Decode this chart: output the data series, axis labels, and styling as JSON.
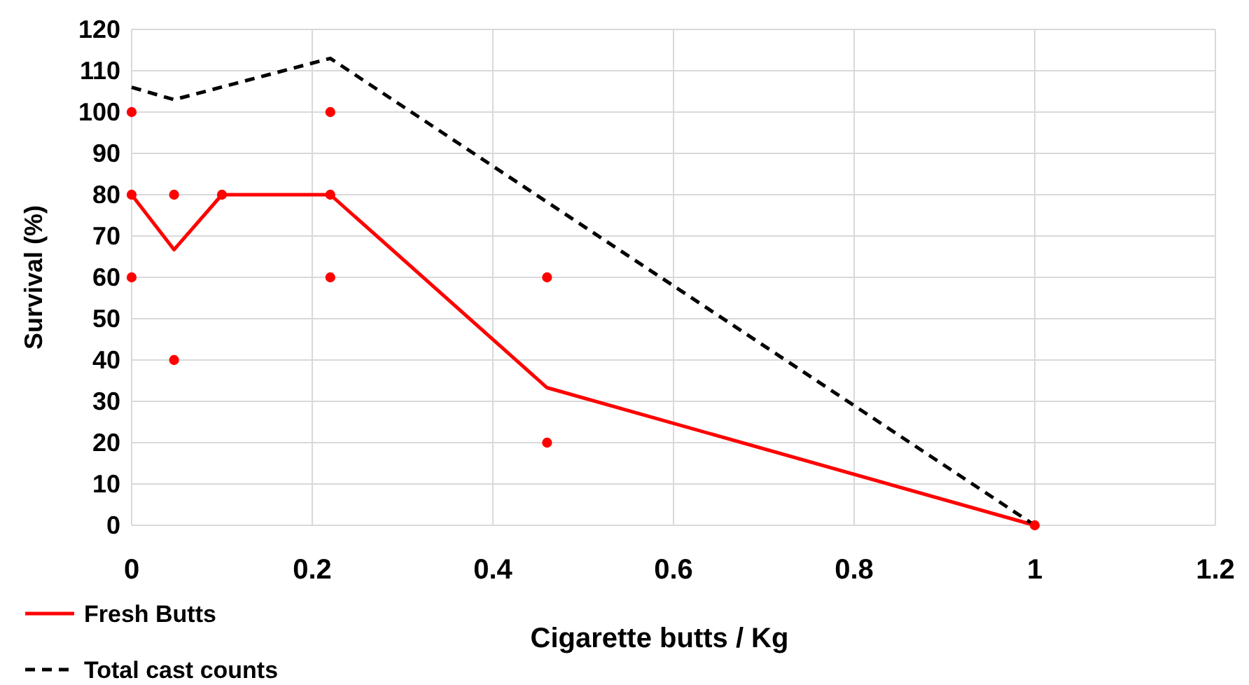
{
  "chart_data": {
    "type": "line",
    "xlabel": "Cigarette butts / Kg",
    "ylabel": "Survival (%)",
    "xlim": [
      0,
      1.2
    ],
    "xticks": [
      0,
      0.2,
      0.4,
      0.6,
      0.8,
      1,
      1.2
    ],
    "ylim": [
      0,
      120
    ],
    "yticks": [
      0,
      10,
      20,
      30,
      40,
      50,
      60,
      70,
      80,
      90,
      100,
      110,
      120
    ],
    "grid": true,
    "legend": "bottom left",
    "marker": "none",
    "series": [
      {
        "name": "Fresh Butts",
        "color": "#ff0000",
        "line_style": "solid",
        "x": [
          0,
          0.047,
          0.1,
          0.22,
          0.46,
          1
        ],
        "values": [
          80,
          66.7,
          80,
          80,
          33.3,
          0
        ]
      },
      {
        "name": "Total cast counts",
        "color": "#000000",
        "line_style": "dashed",
        "x": [
          0,
          0.047,
          0.22,
          1
        ],
        "values": [
          106,
          103,
          113,
          0
        ]
      },
      {
        "type": "scatter",
        "color": "#ff0000",
        "marker": "circle",
        "x": [
          0,
          0,
          0,
          0.047,
          0.047,
          0.1,
          0.22,
          0.22,
          0.22,
          0.46,
          0.46,
          1
        ],
        "values": [
          100,
          80,
          60,
          80,
          40,
          80,
          100,
          80,
          60,
          60,
          20,
          0
        ]
      }
    ]
  }
}
